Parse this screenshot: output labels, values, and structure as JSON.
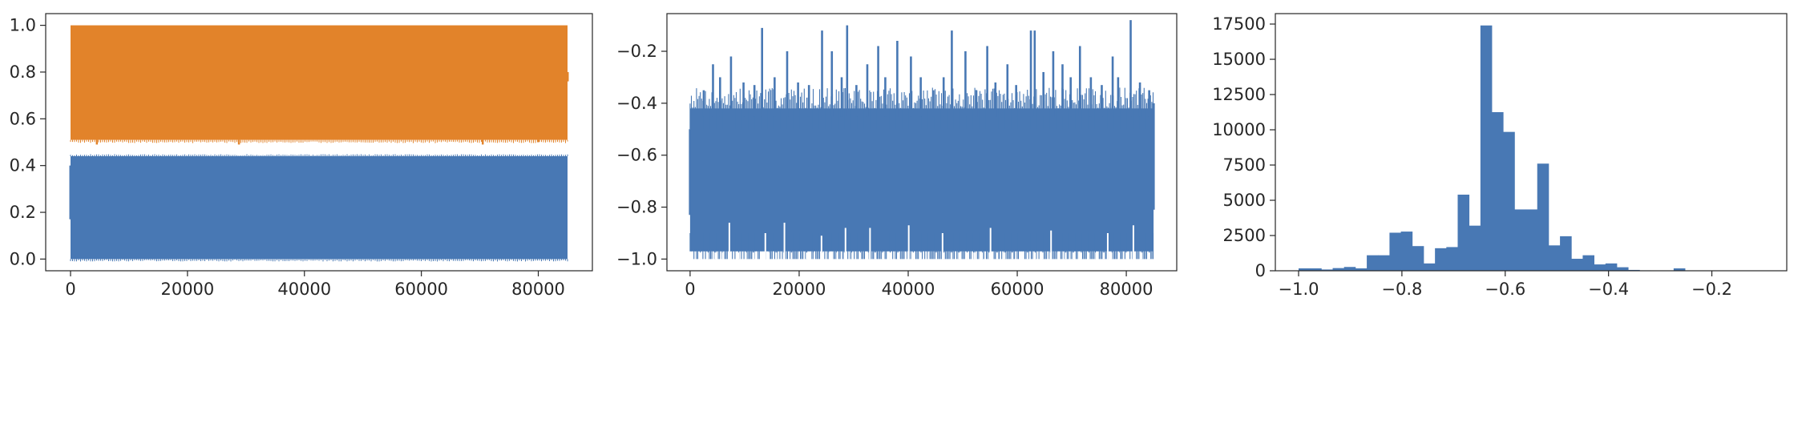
{
  "chart_data": [
    {
      "type": "line",
      "title": "",
      "xlabel": "",
      "ylabel": "",
      "grid": false,
      "legend": "none",
      "xlim": [
        -4250,
        89250
      ],
      "ylim": [
        -0.05,
        1.05
      ],
      "xticks": [
        0,
        20000,
        40000,
        60000,
        80000
      ],
      "xtick_labels": [
        "0",
        "20000",
        "40000",
        "60000",
        "80000"
      ],
      "yticks": [
        0.0,
        0.2,
        0.4,
        0.6,
        0.8,
        1.0
      ],
      "ytick_labels": [
        "0.0",
        "0.2",
        "0.4",
        "0.6",
        "0.8",
        "1.0"
      ],
      "n_points": 85000,
      "series": [
        {
          "color": "#4878b4",
          "x_range": [
            0,
            85000
          ],
          "y_min": 0.0,
          "y_max": 0.44,
          "pattern": "dense oscillation filling band"
        },
        {
          "color": "#e2832a",
          "x_range": [
            0,
            85000
          ],
          "y_min": 0.51,
          "y_max": 1.0,
          "pattern": "dense oscillation filling band",
          "dips": [
            [
              4500,
              0.49
            ],
            [
              28800,
              0.49
            ],
            [
              70500,
              0.49
            ],
            [
              80000,
              0.5
            ]
          ]
        }
      ]
    },
    {
      "type": "line",
      "title": "",
      "xlabel": "",
      "ylabel": "",
      "grid": false,
      "legend": "none",
      "xlim": [
        -4250,
        89250
      ],
      "ylim": [
        -1.045,
        -0.055
      ],
      "xticks": [
        0,
        20000,
        40000,
        60000,
        80000
      ],
      "xtick_labels": [
        "0",
        "20000",
        "40000",
        "60000",
        "80000"
      ],
      "yticks": [
        -1.0,
        -0.8,
        -0.6,
        -0.4,
        -0.2
      ],
      "ytick_labels": [
        "−1.0",
        "−0.8",
        "−0.6",
        "−0.4",
        "−0.2"
      ],
      "series": [
        {
          "color": "#4878b4",
          "body_range": [
            -0.97,
            -0.42
          ],
          "floor": -1.0,
          "spikes": [
            [
              2500,
              -0.35
            ],
            [
              4200,
              -0.25
            ],
            [
              5500,
              -0.3
            ],
            [
              7500,
              -0.22
            ],
            [
              9800,
              -0.32
            ],
            [
              11800,
              -0.33
            ],
            [
              13200,
              -0.11
            ],
            [
              15500,
              -0.3
            ],
            [
              17800,
              -0.2
            ],
            [
              19800,
              -0.32
            ],
            [
              21800,
              -0.33
            ],
            [
              24200,
              -0.12
            ],
            [
              26000,
              -0.2
            ],
            [
              27800,
              -0.3
            ],
            [
              28800,
              -0.1
            ],
            [
              30500,
              -0.33
            ],
            [
              32500,
              -0.25
            ],
            [
              34500,
              -0.18
            ],
            [
              35800,
              -0.3
            ],
            [
              38000,
              -0.16
            ],
            [
              40500,
              -0.22
            ],
            [
              42300,
              -0.3
            ],
            [
              44600,
              -0.35
            ],
            [
              46500,
              -0.3
            ],
            [
              48000,
              -0.12
            ],
            [
              50500,
              -0.2
            ],
            [
              52500,
              -0.35
            ],
            [
              54500,
              -0.18
            ],
            [
              56000,
              -0.32
            ],
            [
              58200,
              -0.25
            ],
            [
              59800,
              -0.33
            ],
            [
              62500,
              -0.12
            ],
            [
              63200,
              -0.12
            ],
            [
              64800,
              -0.28
            ],
            [
              66600,
              -0.2
            ],
            [
              68300,
              -0.25
            ],
            [
              69800,
              -0.3
            ],
            [
              71500,
              -0.18
            ],
            [
              73500,
              -0.3
            ],
            [
              75500,
              -0.33
            ],
            [
              77500,
              -0.22
            ],
            [
              78500,
              -0.3
            ],
            [
              80800,
              -0.08
            ],
            [
              82500,
              -0.32
            ],
            [
              84200,
              -0.35
            ]
          ],
          "white_gaps": [
            [
              7200,
              -0.86
            ],
            [
              13800,
              -0.9
            ],
            [
              17300,
              -0.86
            ],
            [
              24100,
              -0.91
            ],
            [
              28500,
              -0.88
            ],
            [
              33000,
              -0.88
            ],
            [
              40100,
              -0.87
            ],
            [
              46300,
              -0.9
            ],
            [
              55100,
              -0.88
            ],
            [
              66200,
              -0.89
            ],
            [
              76600,
              -0.9
            ],
            [
              81300,
              -0.87
            ]
          ]
        }
      ]
    },
    {
      "type": "bar",
      "histogram": true,
      "title": "",
      "xlabel": "",
      "ylabel": "",
      "grid": false,
      "legend": "none",
      "color": "#4878b4",
      "xlim": [
        -1.045,
        -0.055
      ],
      "ylim": [
        0,
        18240
      ],
      "xticks": [
        -1.0,
        -0.8,
        -0.6,
        -0.4,
        -0.2
      ],
      "xtick_labels": [
        "−1.0",
        "−0.8",
        "−0.6",
        "−0.4",
        "−0.2"
      ],
      "yticks": [
        0,
        2500,
        5000,
        7500,
        10000,
        12500,
        15000,
        17500
      ],
      "ytick_labels": [
        "0",
        "2500",
        "5000",
        "7500",
        "10000",
        "12500",
        "15000",
        "17500"
      ],
      "bin_start": -1.0,
      "bin_width": 0.022,
      "values": [
        170,
        170,
        90,
        190,
        270,
        170,
        1100,
        1100,
        2700,
        2780,
        1750,
        520,
        1600,
        1680,
        5400,
        3200,
        17400,
        11250,
        9850,
        4350,
        4350,
        7600,
        1800,
        2450,
        850,
        1100,
        450,
        520,
        250,
        60,
        30,
        20,
        20,
        170,
        20,
        15,
        10,
        10,
        10,
        10,
        5,
        5
      ]
    }
  ]
}
